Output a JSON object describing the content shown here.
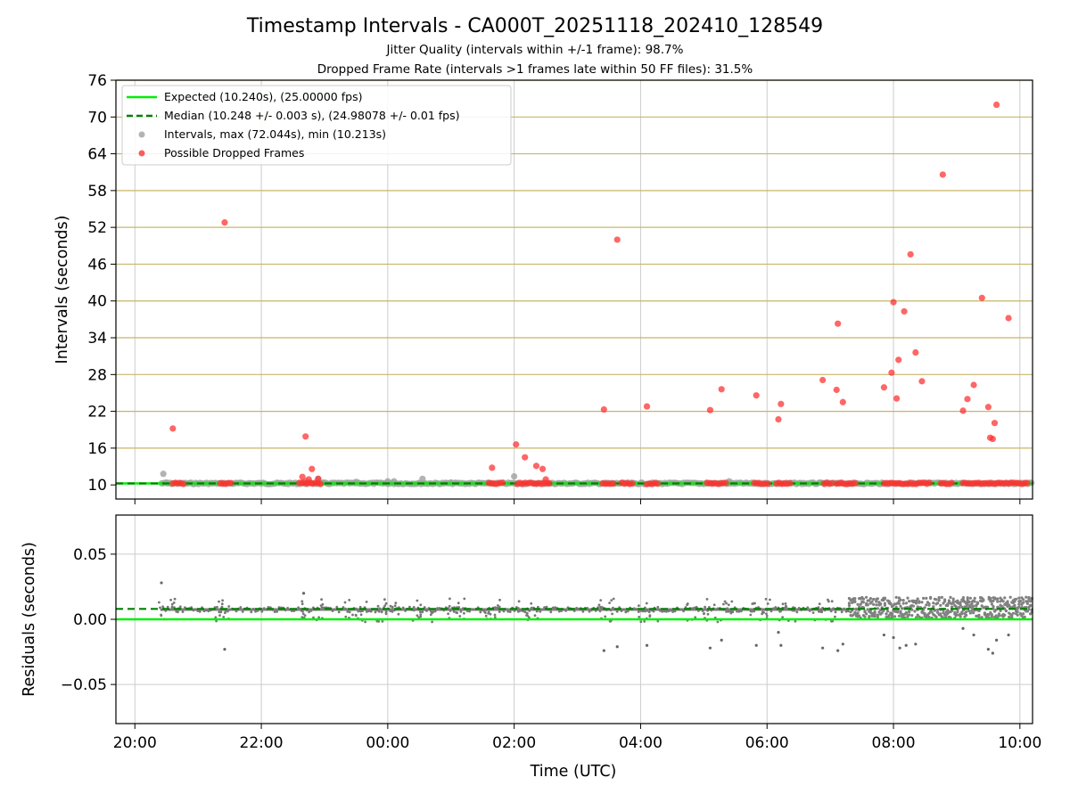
{
  "chart_data": [
    {
      "type": "scatter",
      "title": "Timestamp Intervals - CA000T_20251118_202410_128549",
      "subtitle1": "Jitter Quality (intervals within +/-1 frame): 98.7%",
      "subtitle2": "Dropped Frame Rate (intervals >1 frames late within 50 FF files): 31.5%",
      "xlabel": "",
      "ylabel": "Intervals (seconds)",
      "xlim_hours": [
        19.7,
        34.2
      ],
      "ylim": [
        7.7,
        76
      ],
      "yticks": [
        10,
        16,
        22,
        28,
        34,
        40,
        46,
        52,
        58,
        64,
        70,
        76
      ],
      "yticklabels": [
        "10",
        "16",
        "22",
        "28",
        "34",
        "40",
        "46",
        "52",
        "58",
        "64",
        "70",
        "76"
      ],
      "legend": {
        "position": "upper-left",
        "entries": [
          "Expected (10.240s), (25.00000 fps)",
          "Median (10.248 +/- 0.003 s), (24.98078 +/- 0.01 fps)",
          "Intervals, max (72.044s), min (10.213s)",
          "Possible Dropped Frames"
        ]
      },
      "colors": {
        "expected": "#00ee00",
        "median": "#007f00",
        "intervals": "#a0a0a0",
        "dropped": "#ff3333",
        "hgrid": "#c8b56a",
        "vgrid": "#cccccc"
      },
      "expected": 10.24,
      "median": 10.248,
      "data_start_hour": 20.42,
      "interval_points": [
        {
          "x": 20.45,
          "y": 11.8
        },
        {
          "x": 20.5,
          "y": 10.4
        },
        {
          "x": 22.7,
          "y": 10.6
        },
        {
          "x": 22.9,
          "y": 11.0
        },
        {
          "x": 23.5,
          "y": 10.5
        },
        {
          "x": 24.0,
          "y": 10.6
        },
        {
          "x": 24.1,
          "y": 10.6
        },
        {
          "x": 24.55,
          "y": 11.0
        },
        {
          "x": 25.0,
          "y": 10.4
        },
        {
          "x": 26.0,
          "y": 11.4
        },
        {
          "x": 29.4,
          "y": 10.6
        }
      ],
      "dropped_points": [
        {
          "x": 20.6,
          "y": 19.2
        },
        {
          "x": 21.42,
          "y": 52.8
        },
        {
          "x": 22.65,
          "y": 11.3
        },
        {
          "x": 22.7,
          "y": 17.9
        },
        {
          "x": 22.8,
          "y": 12.6
        },
        {
          "x": 22.75,
          "y": 10.9
        },
        {
          "x": 22.9,
          "y": 11.0
        },
        {
          "x": 25.65,
          "y": 12.8
        },
        {
          "x": 26.03,
          "y": 16.6
        },
        {
          "x": 26.17,
          "y": 14.5
        },
        {
          "x": 26.35,
          "y": 13.1
        },
        {
          "x": 26.45,
          "y": 12.6
        },
        {
          "x": 26.5,
          "y": 10.9
        },
        {
          "x": 27.42,
          "y": 22.3
        },
        {
          "x": 27.63,
          "y": 50.0
        },
        {
          "x": 28.1,
          "y": 22.8
        },
        {
          "x": 29.1,
          "y": 22.2
        },
        {
          "x": 29.28,
          "y": 25.6
        },
        {
          "x": 29.83,
          "y": 24.6
        },
        {
          "x": 30.18,
          "y": 20.7
        },
        {
          "x": 30.22,
          "y": 23.2
        },
        {
          "x": 30.88,
          "y": 27.1
        },
        {
          "x": 31.1,
          "y": 25.5
        },
        {
          "x": 31.12,
          "y": 36.3
        },
        {
          "x": 31.2,
          "y": 23.5
        },
        {
          "x": 31.85,
          "y": 25.9
        },
        {
          "x": 31.97,
          "y": 28.3
        },
        {
          "x": 32.0,
          "y": 39.8
        },
        {
          "x": 32.05,
          "y": 24.1
        },
        {
          "x": 32.08,
          "y": 30.4
        },
        {
          "x": 32.17,
          "y": 38.3
        },
        {
          "x": 32.27,
          "y": 47.6
        },
        {
          "x": 32.35,
          "y": 31.6
        },
        {
          "x": 32.45,
          "y": 26.9
        },
        {
          "x": 32.78,
          "y": 60.6
        },
        {
          "x": 33.1,
          "y": 22.1
        },
        {
          "x": 33.17,
          "y": 24.0
        },
        {
          "x": 33.27,
          "y": 26.3
        },
        {
          "x": 33.4,
          "y": 40.5
        },
        {
          "x": 33.5,
          "y": 22.7
        },
        {
          "x": 33.53,
          "y": 17.7
        },
        {
          "x": 33.57,
          "y": 17.5
        },
        {
          "x": 33.6,
          "y": 20.1
        },
        {
          "x": 33.63,
          "y": 72.0
        },
        {
          "x": 33.82,
          "y": 37.2
        }
      ],
      "dropped_runs_at_baseline": [
        [
          20.6,
          20.8
        ],
        [
          21.35,
          21.55
        ],
        [
          22.6,
          22.95
        ],
        [
          25.6,
          25.85
        ],
        [
          26.05,
          26.6
        ],
        [
          27.4,
          27.6
        ],
        [
          27.7,
          27.9
        ],
        [
          28.1,
          28.3
        ],
        [
          29.05,
          29.35
        ],
        [
          29.8,
          30.05
        ],
        [
          30.15,
          30.4
        ],
        [
          30.9,
          31.05
        ],
        [
          31.1,
          31.4
        ],
        [
          31.85,
          32.6
        ],
        [
          32.75,
          32.95
        ],
        [
          33.1,
          34.15
        ]
      ],
      "xticks_hours": [
        20,
        22,
        24,
        26,
        28,
        30,
        32,
        34
      ],
      "xticklabels": [
        "20:00",
        "22:00",
        "00:00",
        "02:00",
        "04:00",
        "06:00",
        "08:00",
        "10:00"
      ]
    },
    {
      "type": "scatter",
      "xlabel": "Time (UTC)",
      "ylabel": "Residuals (seconds)",
      "xlim_hours": [
        19.7,
        34.2
      ],
      "ylim": [
        -0.08,
        0.08
      ],
      "yticks": [
        0.05,
        0.0,
        -0.05
      ],
      "yticklabels": [
        "0.05",
        "0.00",
        "−0.05"
      ],
      "xticks_hours": [
        20,
        22,
        24,
        26,
        28,
        30,
        32,
        34
      ],
      "xticklabels": [
        "20:00",
        "22:00",
        "00:00",
        "02:00",
        "04:00",
        "06:00",
        "08:00",
        "10:00"
      ],
      "expected_residual": 0.0,
      "median_residual": 0.008,
      "residual_outliers": [
        {
          "x": 20.42,
          "y": 0.028
        },
        {
          "x": 21.42,
          "y": -0.023
        },
        {
          "x": 22.67,
          "y": 0.02
        },
        {
          "x": 27.42,
          "y": -0.024
        },
        {
          "x": 27.63,
          "y": -0.021
        },
        {
          "x": 28.1,
          "y": -0.02
        },
        {
          "x": 29.1,
          "y": -0.022
        },
        {
          "x": 29.28,
          "y": -0.016
        },
        {
          "x": 29.83,
          "y": -0.02
        },
        {
          "x": 30.18,
          "y": -0.01
        },
        {
          "x": 30.22,
          "y": -0.02
        },
        {
          "x": 30.88,
          "y": -0.022
        },
        {
          "x": 31.12,
          "y": -0.024
        },
        {
          "x": 31.2,
          "y": -0.019
        },
        {
          "x": 31.85,
          "y": -0.012
        },
        {
          "x": 32.0,
          "y": -0.014
        },
        {
          "x": 32.1,
          "y": -0.022
        },
        {
          "x": 32.2,
          "y": -0.02
        },
        {
          "x": 32.35,
          "y": -0.019
        },
        {
          "x": 33.1,
          "y": -0.007
        },
        {
          "x": 33.27,
          "y": -0.012
        },
        {
          "x": 33.5,
          "y": -0.023
        },
        {
          "x": 33.57,
          "y": -0.026
        },
        {
          "x": 33.63,
          "y": -0.016
        },
        {
          "x": 33.82,
          "y": -0.012
        }
      ],
      "dense_region_start_hour": 31.3
    }
  ]
}
